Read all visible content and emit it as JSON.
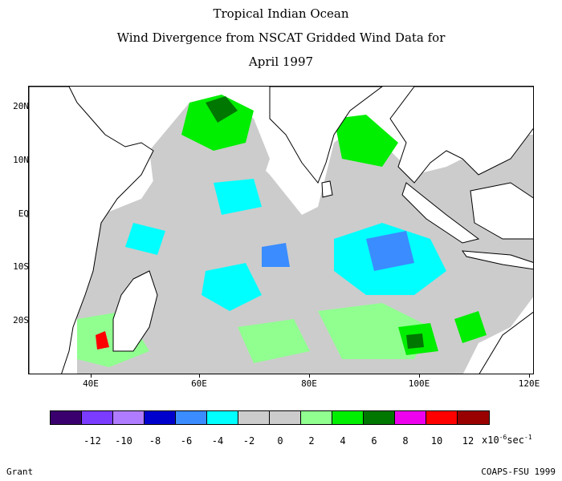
{
  "title": {
    "line1": "Tropical Indian Ocean",
    "line2": "Wind Divergence from NSCAT Gridded Wind Data for",
    "line3": "April 1997"
  },
  "axes": {
    "lat_labels": [
      "20N",
      "10N",
      "EQ",
      "10S",
      "20S"
    ],
    "lon_labels": [
      "40E",
      "60E",
      "80E",
      "100E",
      "120E"
    ]
  },
  "colorbar": {
    "colors": [
      "#3a006e",
      "#7b3cff",
      "#b07cff",
      "#0000cc",
      "#3a8cff",
      "#00ffff",
      "#cccccc",
      "#cccccc",
      "#90ff90",
      "#00ee00",
      "#007700",
      "#ee00ee",
      "#ff0000",
      "#990000"
    ],
    "labels": [
      "-12",
      "-10",
      "-8",
      "-6",
      "-4",
      "-2",
      "0",
      "2",
      "4",
      "6",
      "8",
      "10",
      "12"
    ],
    "unit_prefix": "x10",
    "unit_exp": "-6",
    "unit_suffix": "sec",
    "unit_exp2": "-1"
  },
  "footer": {
    "left": "Grant",
    "right": "COAPS-FSU 1999"
  }
}
